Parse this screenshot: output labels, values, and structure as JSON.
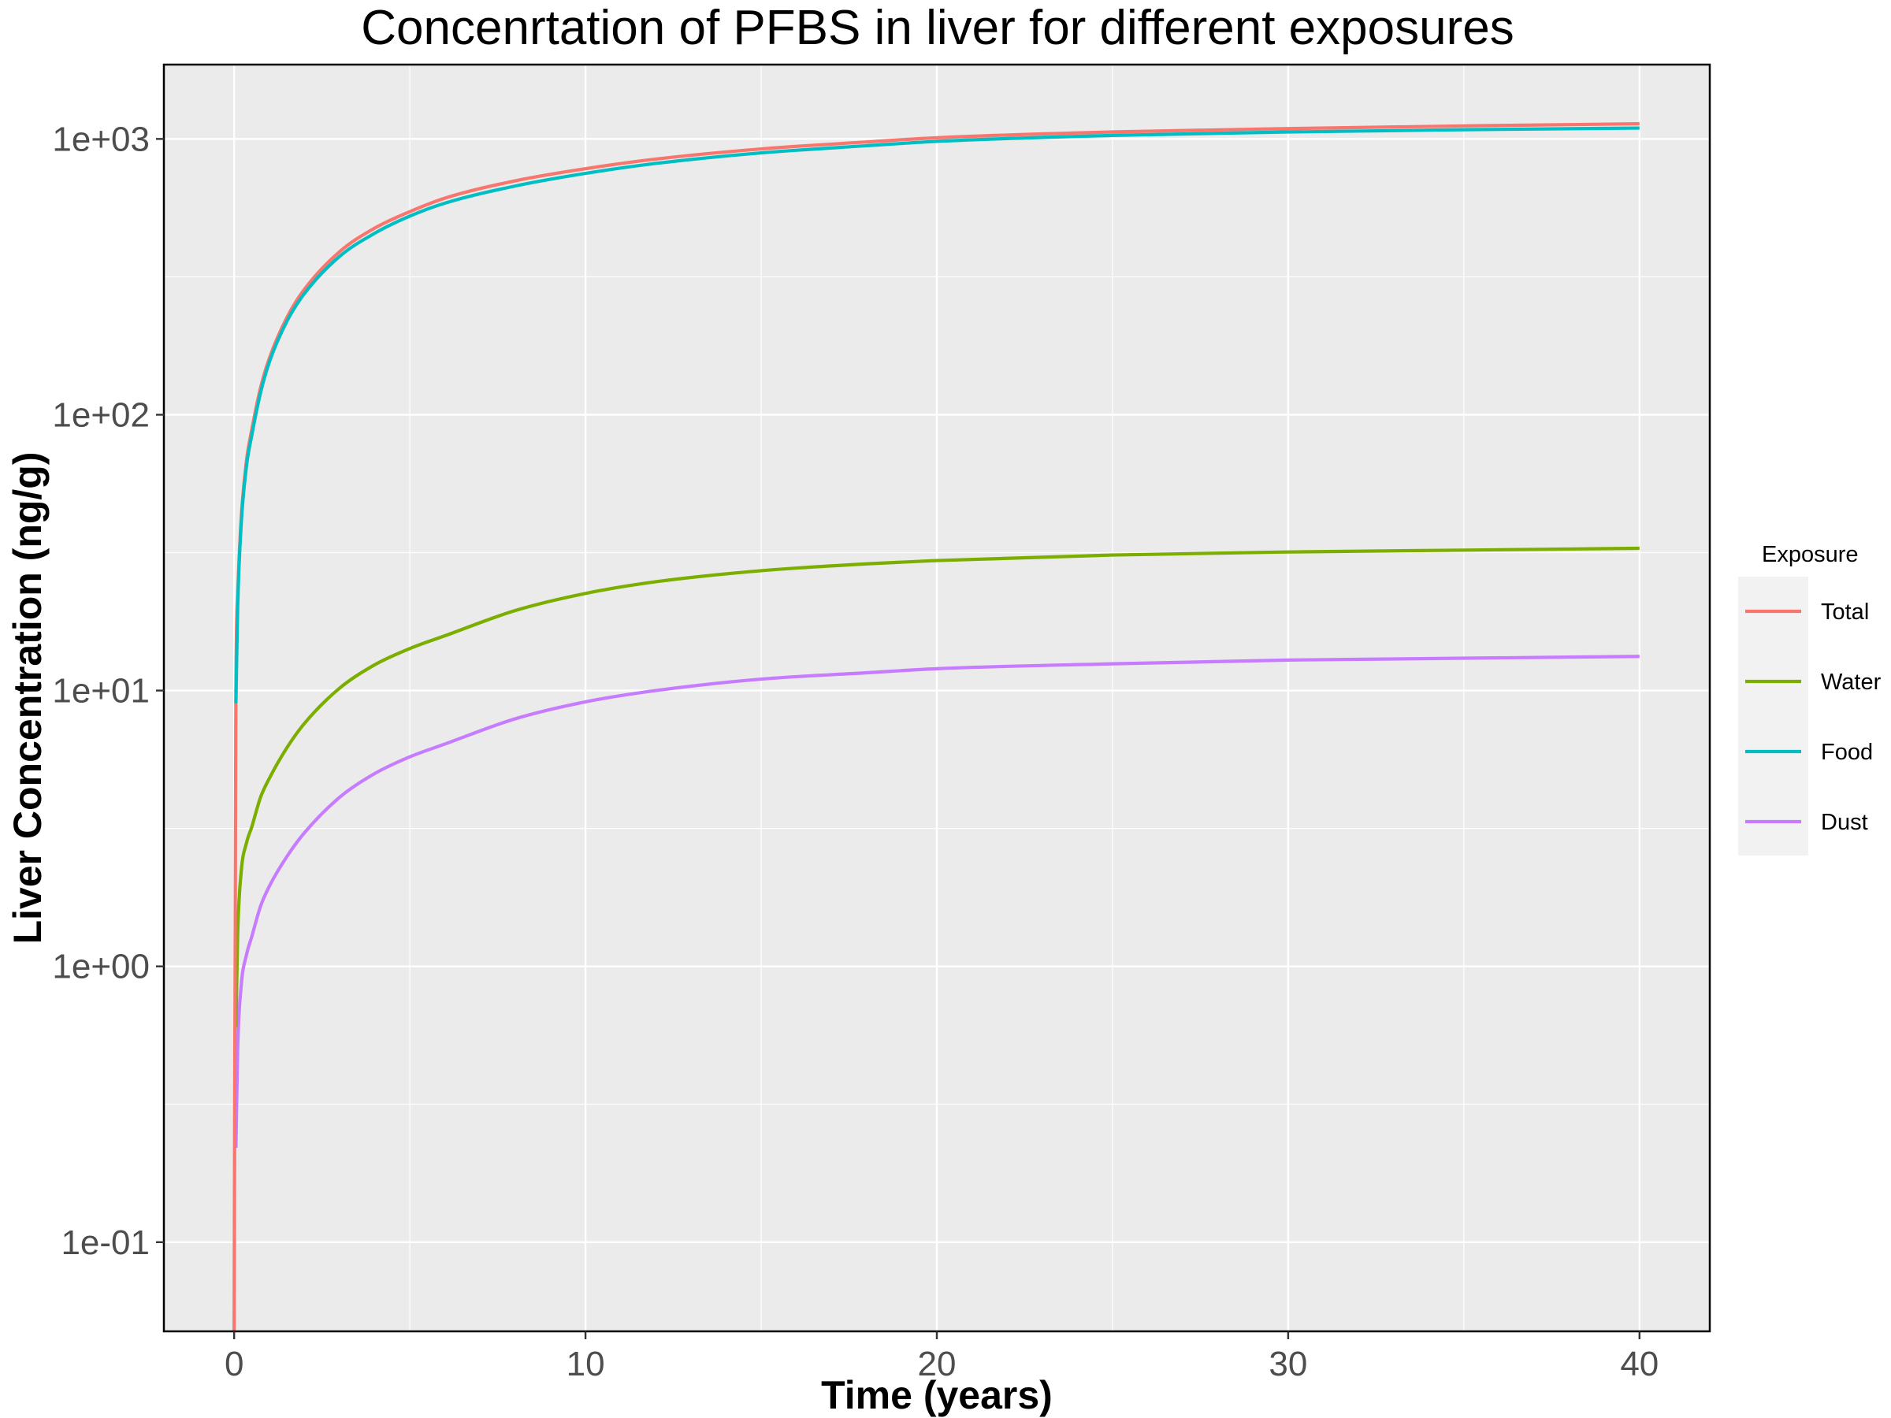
{
  "chart_data": {
    "type": "line",
    "title": "Concenrtation of PFBS in liver for different exposures",
    "xlabel": "Time (years)",
    "ylabel": "Liver Concentration (ng/g)",
    "xlim": [
      -2,
      42
    ],
    "ylim": [
      0.0475,
      1860
    ],
    "y_scale": "log10",
    "x_ticks": [
      0,
      10,
      20,
      30,
      40
    ],
    "x_tick_labels": [
      "0",
      "10",
      "20",
      "30",
      "40"
    ],
    "y_ticks": [
      0.1,
      1,
      10,
      100,
      1000
    ],
    "y_tick_labels": [
      "1e-01",
      "1e+00",
      "1e+01",
      "1e+02",
      "1e+03"
    ],
    "grid": true,
    "background": "#ebebeb",
    "legend": {
      "title": "Exposure",
      "position": "right",
      "entries": [
        "Total",
        "Water",
        "Food",
        "Dust"
      ]
    },
    "series": [
      {
        "name": "Total",
        "color": "#f8766d",
        "x": [
          0,
          0.05,
          0.1,
          0.2,
          0.35,
          0.5,
          0.75,
          1,
          1.5,
          2,
          3,
          4,
          5,
          6,
          8,
          10,
          12,
          15,
          18,
          20,
          25,
          30,
          35,
          40
        ],
        "values": [
          0.0475,
          10,
          22,
          42,
          68,
          88,
          125,
          160,
          225,
          285,
          390,
          475,
          545,
          610,
          705,
          780,
          845,
          920,
          975,
          1010,
          1060,
          1090,
          1115,
          1135
        ]
      },
      {
        "name": "Water",
        "color": "#7cae00",
        "x": [
          0.05,
          0.1,
          0.2,
          0.35,
          0.5,
          0.75,
          1,
          1.5,
          2,
          3,
          4,
          5,
          6,
          8,
          10,
          12,
          15,
          18,
          20,
          25,
          30,
          35,
          40
        ],
        "values": [
          0.6,
          1.3,
          2.2,
          2.8,
          3.2,
          4.1,
          4.8,
          6.2,
          7.6,
          10.2,
          12.4,
          14.2,
          15.8,
          19.5,
          22.5,
          24.8,
          27.2,
          28.8,
          29.6,
          31,
          31.8,
          32.3,
          32.8
        ]
      },
      {
        "name": "Food",
        "color": "#00bfc4",
        "x": [
          0.05,
          0.1,
          0.2,
          0.35,
          0.5,
          0.75,
          1,
          1.5,
          2,
          3,
          4,
          5,
          6,
          8,
          10,
          12,
          15,
          18,
          20,
          25,
          30,
          35,
          40
        ],
        "values": [
          9,
          20,
          40,
          65,
          84,
          120,
          155,
          218,
          275,
          375,
          455,
          525,
          585,
          675,
          750,
          815,
          890,
          945,
          980,
          1030,
          1060,
          1080,
          1095
        ]
      },
      {
        "name": "Dust",
        "color": "#c77cff",
        "x": [
          0.05,
          0.1,
          0.2,
          0.35,
          0.5,
          0.75,
          1,
          1.5,
          2,
          3,
          4,
          5,
          6,
          8,
          10,
          12,
          15,
          18,
          20,
          25,
          30,
          35,
          40
        ],
        "values": [
          0.22,
          0.5,
          0.85,
          1.1,
          1.28,
          1.65,
          1.95,
          2.5,
          3.05,
          4.1,
          5.0,
          5.75,
          6.4,
          7.9,
          9.1,
          10,
          11,
          11.6,
          12,
          12.5,
          12.9,
          13.1,
          13.3
        ]
      }
    ]
  }
}
